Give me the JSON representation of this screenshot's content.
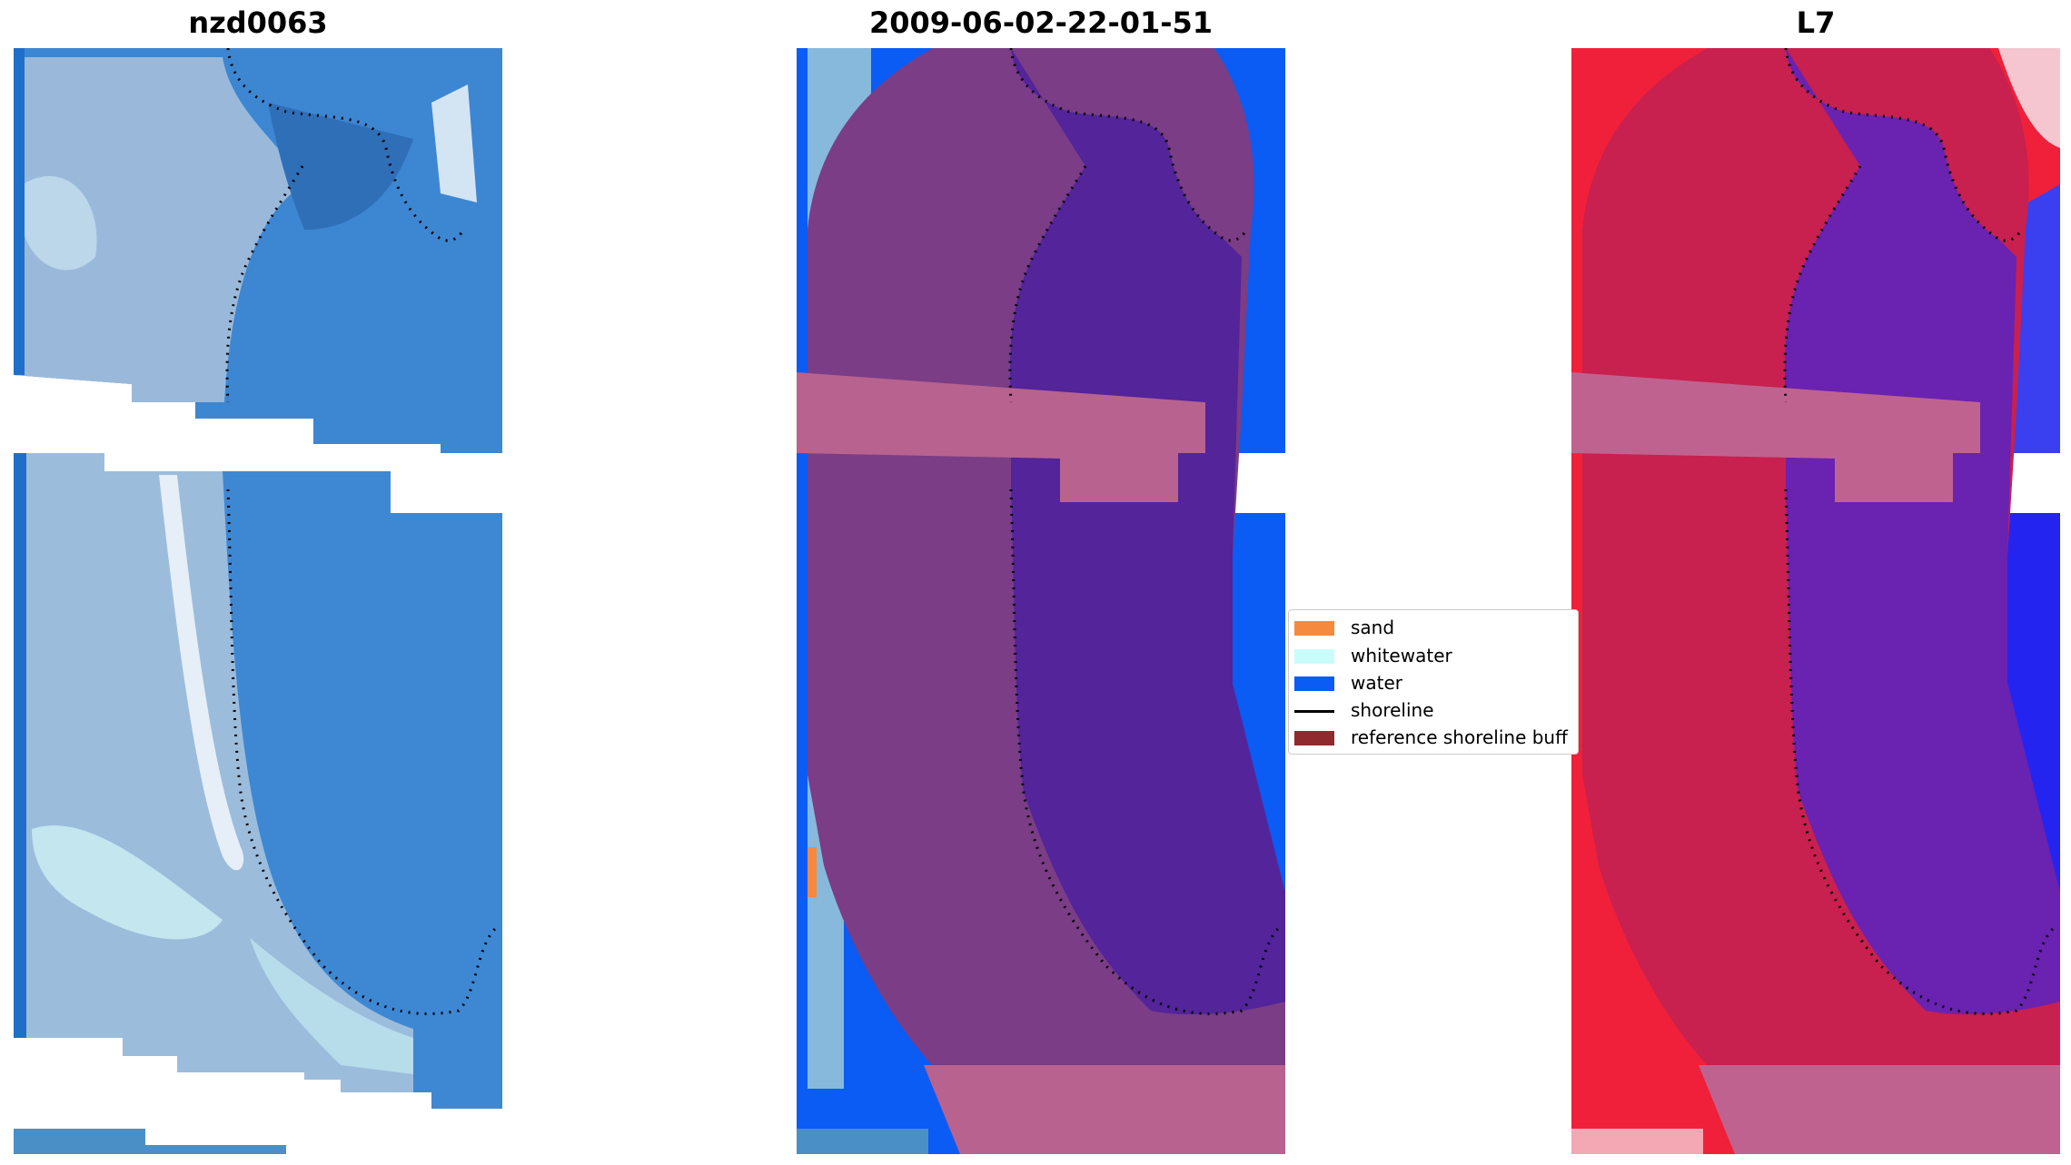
{
  "panels": [
    {
      "title": "nzd0063"
    },
    {
      "title": "2009-06-02-22-01-51"
    },
    {
      "title": "L7"
    }
  ],
  "legend": {
    "items": [
      {
        "label": "sand",
        "color": "#f5893d",
        "kind": "patch"
      },
      {
        "label": "whitewater",
        "color": "#c9fcfa",
        "kind": "patch"
      },
      {
        "label": "water",
        "color": "#0a5cf5",
        "kind": "patch"
      },
      {
        "label": "shoreline",
        "color": "#000000",
        "kind": "line"
      },
      {
        "label": "reference shoreline buff",
        "color": "#8f2a2e",
        "kind": "patch"
      }
    ]
  }
}
